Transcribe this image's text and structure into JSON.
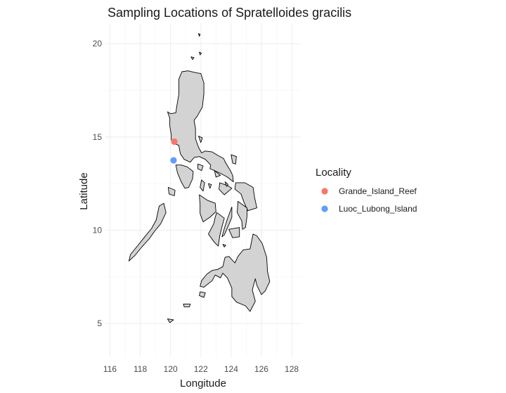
{
  "chart_data": {
    "type": "scatter",
    "title": "Sampling Locations of Spratelloides gracilis",
    "xlabel": "Longitude",
    "ylabel": "Latitude",
    "xlim": [
      115.7,
      128.6
    ],
    "ylim": [
      3.2,
      21.1
    ],
    "x_ticks": [
      116,
      118,
      120,
      122,
      124,
      126,
      128
    ],
    "y_ticks": [
      5,
      10,
      15,
      20
    ],
    "grid": true,
    "basemap": "Philippines coastline (gray fill, black outline)",
    "legend": {
      "title": "Locality",
      "position": "right"
    },
    "series": [
      {
        "name": "Grande_Island_Reef",
        "color": "#F8766D",
        "points": [
          [
            120.25,
            14.75
          ]
        ]
      },
      {
        "name": "Luoc_Lubong_Island",
        "color": "#619CFF",
        "points": [
          [
            120.2,
            13.75
          ]
        ]
      }
    ]
  }
}
